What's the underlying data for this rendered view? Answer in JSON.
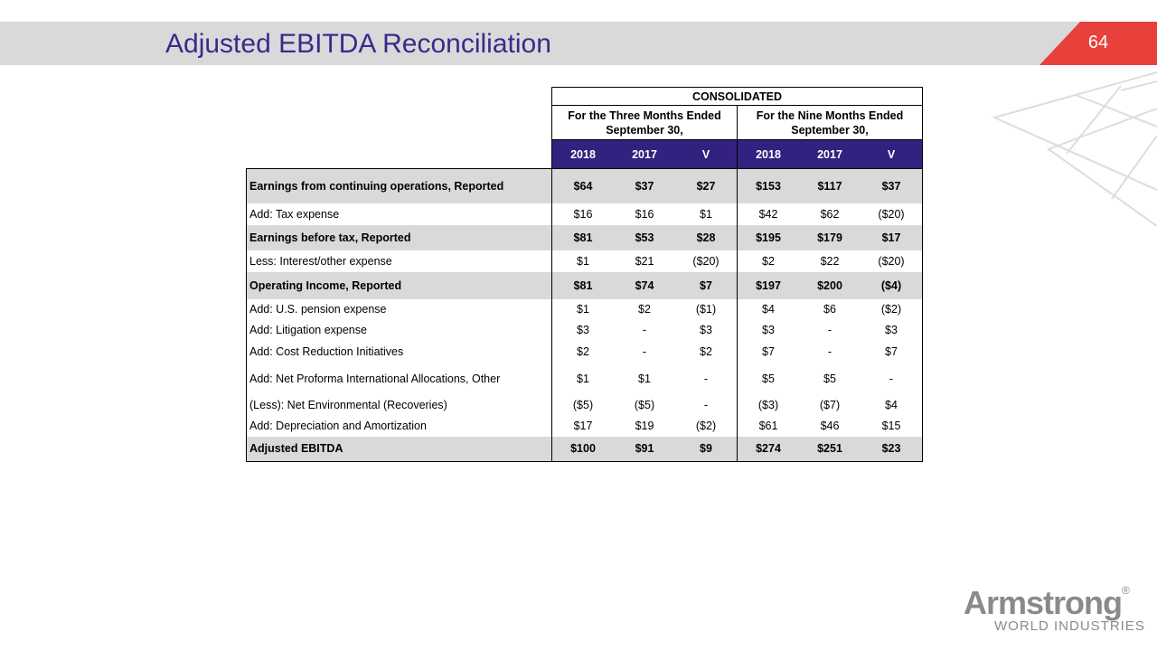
{
  "header": {
    "title": "Adjusted EBITDA Reconciliation",
    "page_number": "64"
  },
  "table": {
    "group_header": "CONSOLIDATED",
    "period_headers": [
      "For the Three Months Ended September 30,",
      "For the Nine Months Ended September 30,"
    ],
    "columns": [
      "2018",
      "2017",
      "V",
      "2018",
      "2017",
      "V"
    ],
    "rows": [
      {
        "label": "Earnings from continuing operations, Reported",
        "values": [
          "$64",
          "$37",
          "$27",
          "$153",
          "$117",
          "$37"
        ],
        "emphasis": true
      },
      {
        "label": "Add: Tax expense",
        "values": [
          "$16",
          "$16",
          "$1",
          "$42",
          "$62",
          "($20)"
        ],
        "emphasis": false
      },
      {
        "label": "Earnings before tax, Reported",
        "values": [
          "$81",
          "$53",
          "$28",
          "$195",
          "$179",
          "$17"
        ],
        "emphasis": true
      },
      {
        "label": "Less: Interest/other expense",
        "values": [
          "$1",
          "$21",
          "($20)",
          "$2",
          "$22",
          "($20)"
        ],
        "emphasis": false
      },
      {
        "label": "Operating Income, Reported",
        "values": [
          "$81",
          "$74",
          "$7",
          "$197",
          "$200",
          "($4)"
        ],
        "emphasis": true
      },
      {
        "label": "Add: U.S. pension expense",
        "values": [
          "$1",
          "$2",
          "($1)",
          "$4",
          "$6",
          "($2)"
        ],
        "emphasis": false
      },
      {
        "label": "Add: Litigation expense",
        "values": [
          "$3",
          "-",
          "$3",
          "$3",
          "-",
          "$3"
        ],
        "emphasis": false
      },
      {
        "label": "Add: Cost Reduction Initiatives",
        "values": [
          "$2",
          "-",
          "$2",
          "$7",
          "-",
          "$7"
        ],
        "emphasis": false
      },
      {
        "label": "Add: Net Proforma International Allocations, Other",
        "values": [
          "$1",
          "$1",
          "-",
          "$5",
          "$5",
          "-"
        ],
        "emphasis": false
      },
      {
        "label": "(Less): Net Environmental (Recoveries)",
        "values": [
          "($5)",
          "($5)",
          "-",
          "($3)",
          "($7)",
          "$4"
        ],
        "emphasis": false
      },
      {
        "label": "Add: Depreciation and Amortization",
        "values": [
          "$17",
          "$19",
          "($2)",
          "$61",
          "$46",
          "$15"
        ],
        "emphasis": false
      },
      {
        "label": "Adjusted EBITDA",
        "values": [
          "$100",
          "$91",
          "$9",
          "$274",
          "$251",
          "$23"
        ],
        "emphasis": true
      }
    ]
  },
  "logo": {
    "name": "Armstrong",
    "registered": "®",
    "tagline": "WORLD INDUSTRIES"
  }
}
